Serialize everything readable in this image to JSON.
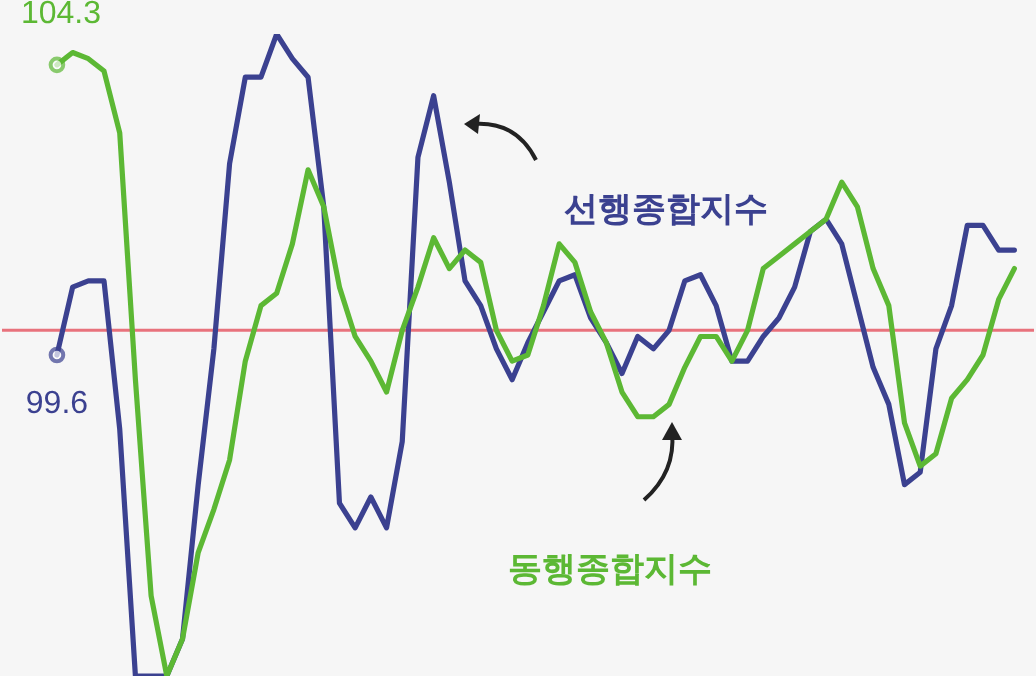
{
  "chart_data": {
    "type": "line",
    "categories": [
      null,
      null,
      null,
      null,
      null,
      null,
      null,
      null,
      null,
      null,
      null,
      null,
      null,
      null,
      null,
      null,
      null,
      null,
      null,
      null,
      null,
      null,
      null,
      null,
      null,
      null,
      null,
      null,
      null,
      null,
      null,
      null,
      null,
      null,
      null,
      null,
      null,
      null,
      null,
      null,
      null,
      null,
      null,
      null,
      null,
      null,
      null,
      null,
      null,
      null,
      null,
      null,
      null,
      null,
      null,
      null,
      null,
      null,
      null,
      null,
      null,
      null
    ],
    "series": [
      {
        "name": "선행종합지수",
        "color": "#3b4190",
        "values": [
          99.6,
          100.7,
          100.8,
          100.8,
          98.4,
          94.4,
          94.4,
          94.4,
          95.0,
          97.5,
          99.7,
          102.7,
          104.1,
          104.1,
          104.8,
          104.4,
          104.1,
          102.0,
          97.2,
          96.8,
          97.3,
          96.8,
          98.2,
          102.8,
          103.8,
          102.4,
          100.8,
          100.4,
          99.7,
          99.2,
          99.8,
          100.3,
          100.8,
          100.9,
          100.2,
          99.8,
          99.3,
          99.9,
          99.7,
          100.0,
          100.8,
          100.9,
          100.4,
          99.5,
          99.5,
          99.9,
          100.2,
          100.7,
          101.6,
          101.8,
          101.4,
          100.4,
          99.4,
          98.8,
          97.5,
          97.7,
          99.7,
          100.4,
          101.7,
          101.7,
          101.3,
          101.3
        ],
        "value_labels": [
          "99.6",
          null,
          null,
          null,
          null,
          null,
          null,
          null,
          null,
          null,
          null,
          null,
          null,
          null,
          null,
          null,
          null,
          null,
          null,
          null,
          null,
          null,
          null,
          null,
          null,
          null,
          null,
          null,
          null,
          null,
          null,
          null,
          null,
          null,
          null,
          null,
          null,
          null,
          null,
          null,
          null,
          null,
          null,
          null,
          null,
          null,
          null,
          null,
          null,
          null,
          null,
          null,
          null,
          null,
          null,
          null,
          null,
          null,
          null,
          null,
          null,
          null
        ]
      },
      {
        "name": "동행종합지수",
        "color": "#5cb834",
        "values": [
          104.3,
          104.5,
          104.4,
          104.2,
          103.2,
          99.2,
          95.7,
          94.4,
          95.0,
          96.4,
          97.1,
          97.9,
          99.5,
          100.4,
          100.6,
          101.4,
          102.6,
          102.0,
          100.7,
          99.9,
          99.5,
          99.0,
          100.0,
          100.7,
          101.5,
          101.0,
          101.3,
          101.1,
          100.0,
          99.5,
          99.6,
          100.4,
          101.4,
          101.1,
          100.3,
          99.8,
          99.0,
          98.6,
          98.6,
          98.8,
          99.4,
          99.9,
          99.9,
          99.5,
          100.0,
          101.0,
          101.2,
          101.4,
          101.6,
          101.8,
          102.4,
          102.0,
          101.0,
          100.4,
          98.5,
          97.8,
          98.0,
          98.9,
          99.2,
          99.6,
          100.5,
          101.0
        ],
        "value_labels": [
          "104.3",
          null,
          null,
          null,
          null,
          null,
          null,
          null,
          null,
          null,
          null,
          null,
          null,
          null,
          null,
          null,
          null,
          null,
          null,
          null,
          null,
          null,
          null,
          null,
          null,
          null,
          null,
          null,
          null,
          null,
          null,
          null,
          null,
          null,
          null,
          null,
          null,
          null,
          null,
          null,
          null,
          null,
          null,
          null,
          null,
          null,
          null,
          null,
          null,
          null,
          null,
          null,
          null,
          null,
          null,
          null,
          null,
          null,
          null,
          null,
          null,
          null
        ]
      }
    ],
    "ref_lines": [
      {
        "axis": "y",
        "value": 100,
        "color": "#e8727c"
      }
    ],
    "tick_labels": false
  }
}
